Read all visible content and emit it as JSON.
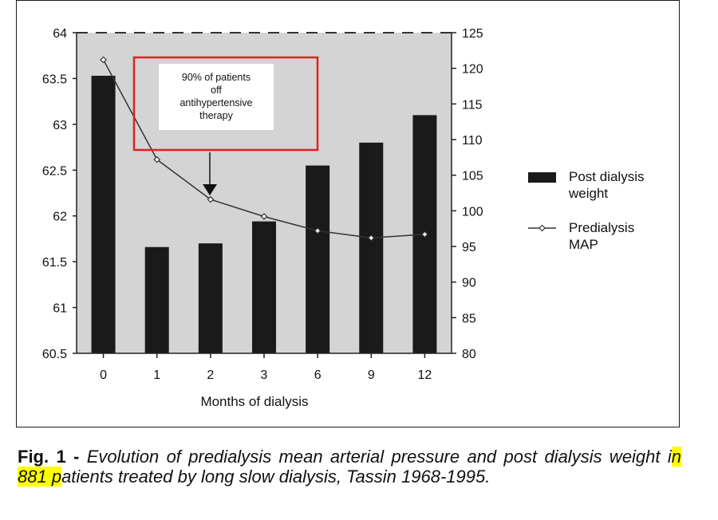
{
  "chart_data": {
    "type": "bar",
    "categories": [
      "0",
      "1",
      "2",
      "3",
      "6",
      "9",
      "12"
    ],
    "xlabel": "Months of dialysis",
    "series": [
      {
        "name": "Post dialysis weight",
        "kind": "bar",
        "axis": "left",
        "color": "#1a1a1a",
        "values": [
          63.53,
          61.66,
          61.7,
          61.94,
          62.55,
          62.8,
          63.1
        ]
      },
      {
        "name": "Predialysis MAP",
        "kind": "line",
        "axis": "right",
        "color": "#333333",
        "marker": "open-diamond",
        "values": [
          121.2,
          107.2,
          101.6,
          99.2,
          97.2,
          96.2,
          96.7
        ]
      }
    ],
    "y_left": {
      "ylim": [
        60.5,
        64
      ],
      "ticks": [
        "60.5",
        "61",
        "61.5",
        "62",
        "62.5",
        "63",
        "63.5",
        "64"
      ]
    },
    "y_right": {
      "ylim": [
        80,
        125
      ],
      "ticks": [
        "80",
        "85",
        "90",
        "95",
        "100",
        "105",
        "110",
        "115",
        "120",
        "125"
      ]
    },
    "background": "#d4d4d4",
    "grid": false,
    "legend_position": "right",
    "legend": [
      "Post dialysis weight",
      "Predialysis MAP"
    ],
    "annotation": {
      "lines": [
        "90% of patients",
        "off",
        "antihypertensive",
        "therapy"
      ],
      "points_to_category": "2",
      "highlight_box_color": "#e02020"
    }
  },
  "caption": {
    "fig_label": "Fig. 1 - ",
    "text_before": "Evolution of predialysis mean arterial pressure and post dialysis weight i",
    "highlighted": "n 881 p",
    "text_after": "atients treated by long slow dialysis, Tassin 1968-1995.",
    "highlight_color": "#ffff00"
  }
}
